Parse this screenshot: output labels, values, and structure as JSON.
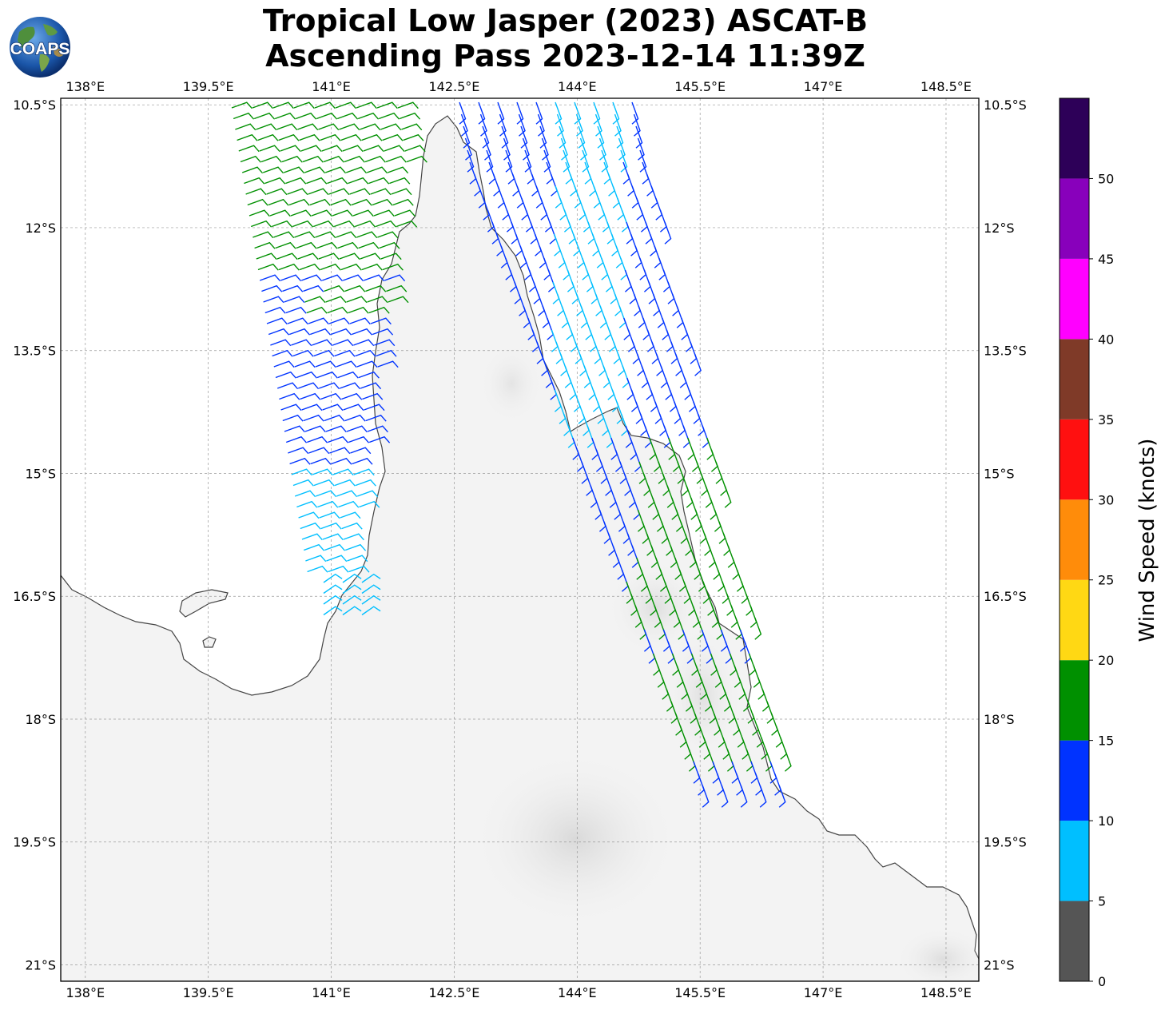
{
  "title": {
    "line1": "Tropical Low Jasper (2023) ASCAT-B",
    "line2": "Ascending Pass 2023-12-14 11:39Z"
  },
  "logo": {
    "text": "COAPS",
    "icon": "coaps-globe-logo-icon"
  },
  "map": {
    "lon_ticks": [
      "138°E",
      "139.5°E",
      "141°E",
      "142.5°E",
      "144°E",
      "145.5°E",
      "147°E",
      "148.5°E"
    ],
    "lat_ticks": [
      "10.5°S",
      "12°S",
      "13.5°S",
      "15°S",
      "16.5°S",
      "18°S",
      "19.5°S",
      "21°S"
    ],
    "lon_values": [
      138,
      139.5,
      141,
      142.5,
      144,
      145.5,
      147,
      148.5
    ],
    "lat_values": [
      -10.5,
      -12,
      -13.5,
      -15,
      -16.5,
      -18,
      -19.5,
      -21
    ],
    "extent": {
      "lon_min": 137.7,
      "lon_max": 148.9,
      "lat_min": -21.2,
      "lat_max": -10.42
    },
    "grid": true,
    "land_color": "#f3f3f3",
    "coast_color": "#444444"
  },
  "colorbar": {
    "label": "Wind Speed (knots)",
    "ticks": [
      "0",
      "5",
      "10",
      "15",
      "20",
      "25",
      "30",
      "35",
      "40",
      "45",
      "50"
    ],
    "bins": [
      {
        "min": 0,
        "max": 5,
        "color": "#555555"
      },
      {
        "min": 5,
        "max": 10,
        "color": "#00bfff"
      },
      {
        "min": 10,
        "max": 15,
        "color": "#0033ff"
      },
      {
        "min": 15,
        "max": 20,
        "color": "#009000"
      },
      {
        "min": 20,
        "max": 25,
        "color": "#ffd814"
      },
      {
        "min": 25,
        "max": 30,
        "color": "#ff8c0a"
      },
      {
        "min": 30,
        "max": 35,
        "color": "#ff1010"
      },
      {
        "min": 35,
        "max": 40,
        "color": "#7f3a28"
      },
      {
        "min": 40,
        "max": 45,
        "color": "#ff00ff"
      },
      {
        "min": 45,
        "max": 50,
        "color": "#8800bb"
      },
      {
        "min": 50,
        "max": 55,
        "color": "#2d0058"
      }
    ]
  }
}
